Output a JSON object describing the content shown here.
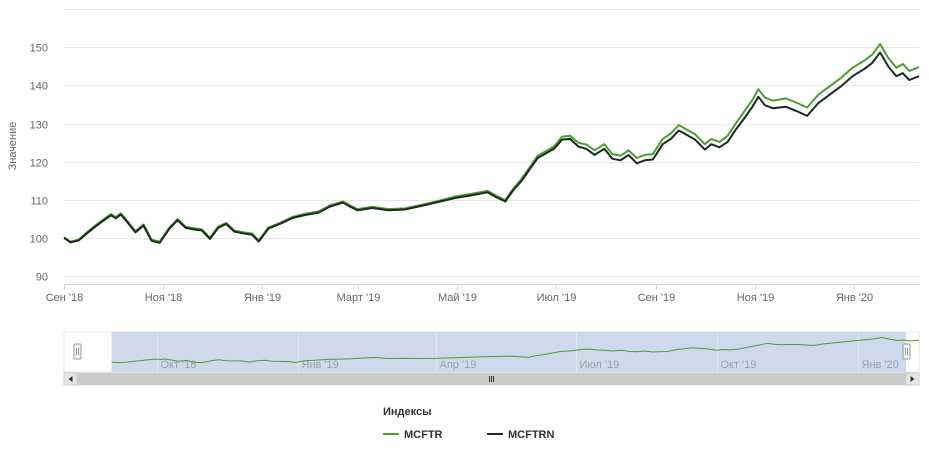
{
  "chart_data": {
    "type": "line",
    "title": "",
    "ylabel": "Значение",
    "xlabel": "",
    "ylim": [
      88,
      160
    ],
    "grid": true,
    "x_range": [
      "2018-09-01",
      "2020-02-10"
    ],
    "x_ticks": [
      {
        "date": "2018-09-01",
        "label": "Сен '18"
      },
      {
        "date": "2018-11-01",
        "label": "Ноя '18"
      },
      {
        "date": "2019-01-01",
        "label": "Янв '19"
      },
      {
        "date": "2019-03-01",
        "label": "Март '19"
      },
      {
        "date": "2019-05-01",
        "label": "Май '19"
      },
      {
        "date": "2019-07-01",
        "label": "Июл '19"
      },
      {
        "date": "2019-09-01",
        "label": "Сен '19"
      },
      {
        "date": "2019-11-01",
        "label": "Ноя '19"
      },
      {
        "date": "2020-01-01",
        "label": "Янв '20"
      }
    ],
    "y_ticks": [
      90,
      100,
      110,
      120,
      130,
      140,
      150
    ],
    "legend": {
      "title": "Индексы",
      "placement": "bottom-center"
    },
    "series": [
      {
        "name": "MCFTR",
        "color": "#4c9e2f",
        "points": [
          [
            "2018-09-01",
            100.2
          ],
          [
            "2018-09-05",
            99.1
          ],
          [
            "2018-09-10",
            99.6
          ],
          [
            "2018-09-15",
            101.5
          ],
          [
            "2018-09-20",
            103.2
          ],
          [
            "2018-09-25",
            104.8
          ],
          [
            "2018-09-30",
            106.3
          ],
          [
            "2018-10-03",
            105.5
          ],
          [
            "2018-10-06",
            106.5
          ],
          [
            "2018-10-10",
            104.5
          ],
          [
            "2018-10-15",
            101.8
          ],
          [
            "2018-10-20",
            103.6
          ],
          [
            "2018-10-25",
            99.6
          ],
          [
            "2018-10-30",
            99.1
          ],
          [
            "2018-11-05",
            102.8
          ],
          [
            "2018-11-10",
            105.0
          ],
          [
            "2018-11-15",
            103.0
          ],
          [
            "2018-11-20",
            102.6
          ],
          [
            "2018-11-25",
            102.3
          ],
          [
            "2018-11-30",
            100.1
          ],
          [
            "2018-12-05",
            103.0
          ],
          [
            "2018-12-10",
            104.0
          ],
          [
            "2018-12-15",
            102.0
          ],
          [
            "2018-12-20",
            101.6
          ],
          [
            "2018-12-26",
            101.2
          ],
          [
            "2018-12-30",
            99.4
          ],
          [
            "2019-01-05",
            102.8
          ],
          [
            "2019-01-12",
            104.0
          ],
          [
            "2019-01-20",
            105.6
          ],
          [
            "2019-01-28",
            106.4
          ],
          [
            "2019-02-05",
            107.0
          ],
          [
            "2019-02-12",
            108.6
          ],
          [
            "2019-02-20",
            109.6
          ],
          [
            "2019-02-25",
            108.4
          ],
          [
            "2019-03-01",
            107.6
          ],
          [
            "2019-03-10",
            108.2
          ],
          [
            "2019-03-20",
            107.6
          ],
          [
            "2019-03-30",
            107.8
          ],
          [
            "2019-04-10",
            108.8
          ],
          [
            "2019-04-20",
            109.8
          ],
          [
            "2019-05-01",
            111.0
          ],
          [
            "2019-05-10",
            111.6
          ],
          [
            "2019-05-20",
            112.4
          ],
          [
            "2019-05-25",
            111.2
          ],
          [
            "2019-05-31",
            110.0
          ],
          [
            "2019-06-05",
            113.0
          ],
          [
            "2019-06-10",
            115.5
          ],
          [
            "2019-06-15",
            118.5
          ],
          [
            "2019-06-20",
            121.6
          ],
          [
            "2019-06-25",
            122.8
          ],
          [
            "2019-06-30",
            124.0
          ],
          [
            "2019-07-05",
            126.6
          ],
          [
            "2019-07-10",
            126.8
          ],
          [
            "2019-07-15",
            125.0
          ],
          [
            "2019-07-20",
            124.5
          ],
          [
            "2019-07-25",
            123.0
          ],
          [
            "2019-07-31",
            124.6
          ],
          [
            "2019-08-05",
            122.0
          ],
          [
            "2019-08-10",
            121.6
          ],
          [
            "2019-08-15",
            123.0
          ],
          [
            "2019-08-20",
            121.0
          ],
          [
            "2019-08-25",
            121.8
          ],
          [
            "2019-08-30",
            122.0
          ],
          [
            "2019-09-05",
            126.0
          ],
          [
            "2019-09-10",
            127.4
          ],
          [
            "2019-09-15",
            129.6
          ],
          [
            "2019-09-20",
            128.4
          ],
          [
            "2019-09-25",
            127.2
          ],
          [
            "2019-10-01",
            124.6
          ],
          [
            "2019-10-05",
            126.0
          ],
          [
            "2019-10-10",
            125.2
          ],
          [
            "2019-10-15",
            126.8
          ],
          [
            "2019-10-20",
            130.0
          ],
          [
            "2019-10-25",
            133.0
          ],
          [
            "2019-10-30",
            136.0
          ],
          [
            "2019-11-03",
            139.0
          ],
          [
            "2019-11-07",
            136.8
          ],
          [
            "2019-11-12",
            136.0
          ],
          [
            "2019-11-20",
            136.6
          ],
          [
            "2019-11-27",
            135.4
          ],
          [
            "2019-12-03",
            134.2
          ],
          [
            "2019-12-10",
            137.6
          ],
          [
            "2019-12-17",
            139.8
          ],
          [
            "2019-12-24",
            142.0
          ],
          [
            "2019-12-31",
            144.6
          ],
          [
            "2020-01-07",
            146.4
          ],
          [
            "2020-01-12",
            148.0
          ],
          [
            "2020-01-17",
            150.8
          ],
          [
            "2020-01-22",
            147.2
          ],
          [
            "2020-01-27",
            144.6
          ],
          [
            "2020-01-31",
            145.6
          ],
          [
            "2020-02-04",
            143.8
          ],
          [
            "2020-02-10",
            144.8
          ]
        ]
      },
      {
        "name": "MCFTRN",
        "color": "#1a2a1f",
        "points": [
          [
            "2018-09-01",
            100.1
          ],
          [
            "2018-09-05",
            98.9
          ],
          [
            "2018-09-10",
            99.4
          ],
          [
            "2018-09-15",
            101.2
          ],
          [
            "2018-09-20",
            102.9
          ],
          [
            "2018-09-25",
            104.5
          ],
          [
            "2018-09-30",
            106.0
          ],
          [
            "2018-10-03",
            105.2
          ],
          [
            "2018-10-06",
            106.2
          ],
          [
            "2018-10-10",
            104.2
          ],
          [
            "2018-10-15",
            101.5
          ],
          [
            "2018-10-20",
            103.3
          ],
          [
            "2018-10-25",
            99.3
          ],
          [
            "2018-10-30",
            98.8
          ],
          [
            "2018-11-05",
            102.5
          ],
          [
            "2018-11-10",
            104.7
          ],
          [
            "2018-11-15",
            102.7
          ],
          [
            "2018-11-20",
            102.3
          ],
          [
            "2018-11-25",
            102.0
          ],
          [
            "2018-11-30",
            99.8
          ],
          [
            "2018-12-05",
            102.7
          ],
          [
            "2018-12-10",
            103.7
          ],
          [
            "2018-12-15",
            101.7
          ],
          [
            "2018-12-20",
            101.3
          ],
          [
            "2018-12-26",
            100.9
          ],
          [
            "2018-12-30",
            99.1
          ],
          [
            "2019-01-05",
            102.5
          ],
          [
            "2019-01-12",
            103.7
          ],
          [
            "2019-01-20",
            105.3
          ],
          [
            "2019-01-28",
            106.1
          ],
          [
            "2019-02-05",
            106.7
          ],
          [
            "2019-02-12",
            108.3
          ],
          [
            "2019-02-20",
            109.3
          ],
          [
            "2019-02-25",
            108.1
          ],
          [
            "2019-03-01",
            107.3
          ],
          [
            "2019-03-10",
            107.9
          ],
          [
            "2019-03-20",
            107.3
          ],
          [
            "2019-03-30",
            107.5
          ],
          [
            "2019-04-10",
            108.5
          ],
          [
            "2019-04-20",
            109.5
          ],
          [
            "2019-05-01",
            110.6
          ],
          [
            "2019-05-10",
            111.2
          ],
          [
            "2019-05-20",
            112.0
          ],
          [
            "2019-05-25",
            110.8
          ],
          [
            "2019-05-31",
            109.6
          ],
          [
            "2019-06-05",
            112.6
          ],
          [
            "2019-06-10",
            115.0
          ],
          [
            "2019-06-15",
            118.0
          ],
          [
            "2019-06-20",
            121.0
          ],
          [
            "2019-06-25",
            122.2
          ],
          [
            "2019-06-30",
            123.4
          ],
          [
            "2019-07-05",
            125.8
          ],
          [
            "2019-07-10",
            126.0
          ],
          [
            "2019-07-15",
            124.0
          ],
          [
            "2019-07-20",
            123.4
          ],
          [
            "2019-07-25",
            121.8
          ],
          [
            "2019-07-31",
            123.4
          ],
          [
            "2019-08-05",
            120.8
          ],
          [
            "2019-08-10",
            120.4
          ],
          [
            "2019-08-15",
            121.8
          ],
          [
            "2019-08-20",
            119.6
          ],
          [
            "2019-08-25",
            120.4
          ],
          [
            "2019-08-30",
            120.6
          ],
          [
            "2019-09-05",
            124.6
          ],
          [
            "2019-09-10",
            126.0
          ],
          [
            "2019-09-15",
            128.2
          ],
          [
            "2019-09-20",
            127.0
          ],
          [
            "2019-09-25",
            125.8
          ],
          [
            "2019-10-01",
            123.2
          ],
          [
            "2019-10-05",
            124.6
          ],
          [
            "2019-10-10",
            123.8
          ],
          [
            "2019-10-15",
            125.2
          ],
          [
            "2019-10-20",
            128.4
          ],
          [
            "2019-10-25",
            131.2
          ],
          [
            "2019-10-30",
            134.2
          ],
          [
            "2019-11-03",
            137.0
          ],
          [
            "2019-11-07",
            134.8
          ],
          [
            "2019-11-12",
            134.0
          ],
          [
            "2019-11-20",
            134.4
          ],
          [
            "2019-11-27",
            133.2
          ],
          [
            "2019-12-03",
            132.0
          ],
          [
            "2019-12-10",
            135.4
          ],
          [
            "2019-12-17",
            137.6
          ],
          [
            "2019-12-24",
            139.8
          ],
          [
            "2019-12-31",
            142.4
          ],
          [
            "2020-01-07",
            144.2
          ],
          [
            "2020-01-12",
            145.8
          ],
          [
            "2020-01-17",
            148.6
          ],
          [
            "2020-01-22",
            145.0
          ],
          [
            "2020-01-27",
            142.4
          ],
          [
            "2020-01-31",
            143.2
          ],
          [
            "2020-02-04",
            141.4
          ],
          [
            "2020-02-10",
            142.4
          ]
        ]
      }
    ],
    "navigator": {
      "x_range": [
        "2018-08-01",
        "2020-02-10"
      ],
      "selected_range": [
        "2018-09-01",
        "2020-02-10"
      ],
      "x_ticks": [
        {
          "date": "2018-10-01",
          "label": "Окт '18"
        },
        {
          "date": "2019-01-01",
          "label": "Янв '19"
        },
        {
          "date": "2019-04-01",
          "label": "Апр '19"
        },
        {
          "date": "2019-07-01",
          "label": "Июл '19"
        },
        {
          "date": "2019-10-01",
          "label": "Окт '19"
        },
        {
          "date": "2020-01-01",
          "label": "Янв '20"
        }
      ]
    }
  }
}
